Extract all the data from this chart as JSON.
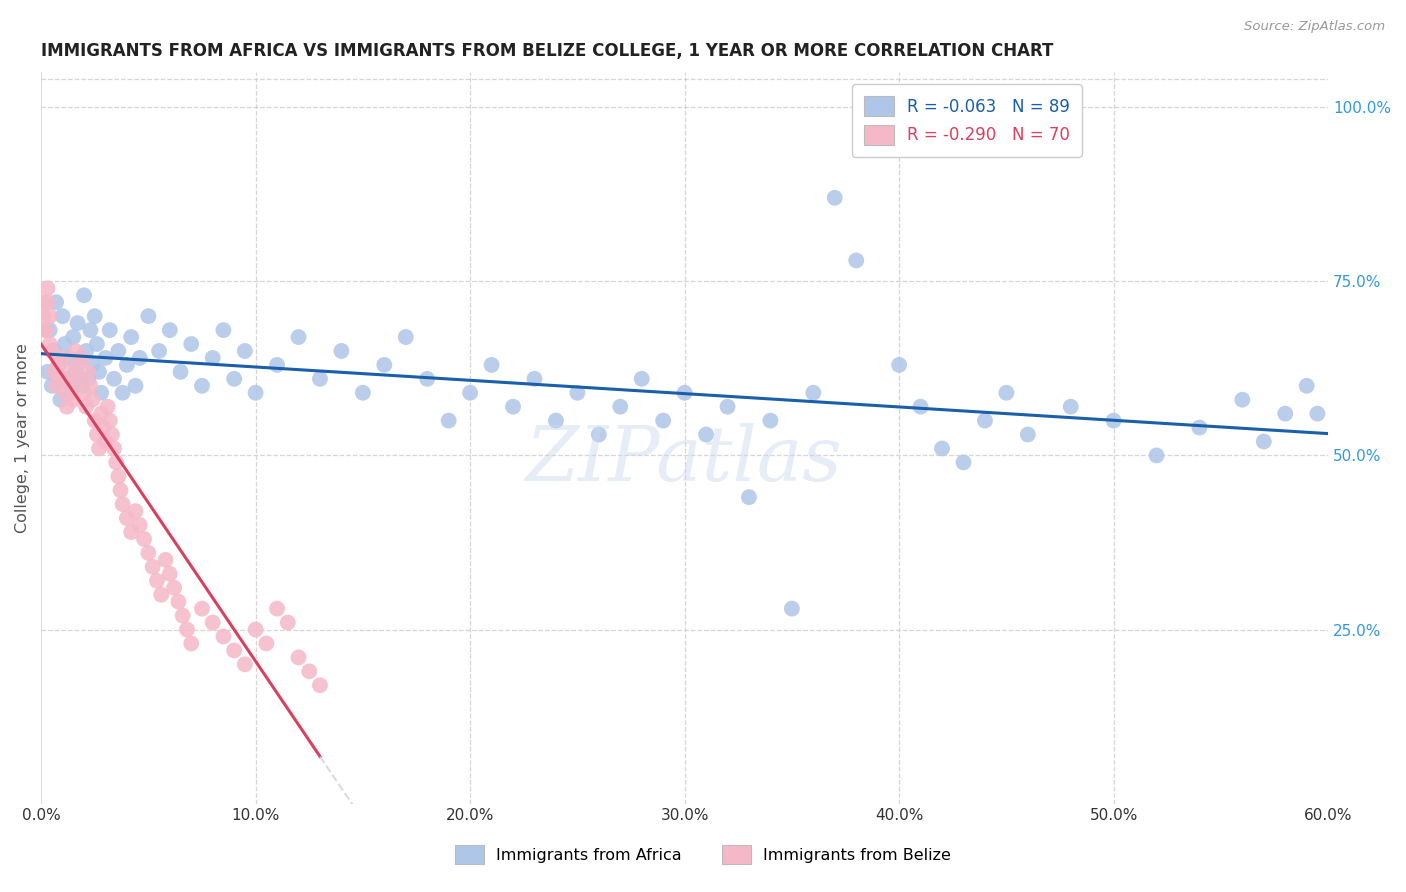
{
  "title": "IMMIGRANTS FROM AFRICA VS IMMIGRANTS FROM BELIZE COLLEGE, 1 YEAR OR MORE CORRELATION CHART",
  "source": "Source: ZipAtlas.com",
  "ylabel": "College, 1 year or more",
  "right_yticks": [
    "100.0%",
    "75.0%",
    "50.0%",
    "25.0%"
  ],
  "right_ytick_vals": [
    1.0,
    0.75,
    0.5,
    0.25
  ],
  "xlim": [
    0.0,
    0.6
  ],
  "ylim": [
    0.0,
    1.05
  ],
  "watermark": "ZIPatlas",
  "blue_color": "#aec6e8",
  "pink_color": "#f5b8c8",
  "blue_line_color": "#1a5faa",
  "pink_line_color": "#d94060",
  "pink_dash_color": "#cccccc",
  "grid_color": "#cccccc",
  "background_color": "#ffffff",
  "africa_x": [
    0.003,
    0.004,
    0.005,
    0.006,
    0.007,
    0.008,
    0.009,
    0.01,
    0.011,
    0.012,
    0.013,
    0.014,
    0.015,
    0.016,
    0.017,
    0.018,
    0.019,
    0.02,
    0.021,
    0.022,
    0.023,
    0.024,
    0.025,
    0.026,
    0.027,
    0.028,
    0.03,
    0.032,
    0.034,
    0.036,
    0.038,
    0.04,
    0.042,
    0.044,
    0.046,
    0.05,
    0.055,
    0.06,
    0.065,
    0.07,
    0.075,
    0.08,
    0.085,
    0.09,
    0.095,
    0.1,
    0.11,
    0.12,
    0.13,
    0.14,
    0.15,
    0.16,
    0.17,
    0.18,
    0.19,
    0.2,
    0.21,
    0.22,
    0.23,
    0.24,
    0.25,
    0.26,
    0.27,
    0.28,
    0.29,
    0.3,
    0.31,
    0.32,
    0.34,
    0.36,
    0.37,
    0.38,
    0.4,
    0.41,
    0.42,
    0.44,
    0.45,
    0.46,
    0.48,
    0.5,
    0.52,
    0.54,
    0.56,
    0.57,
    0.58,
    0.59,
    0.595,
    0.33,
    0.35,
    0.43
  ],
  "africa_y": [
    0.62,
    0.68,
    0.6,
    0.65,
    0.72,
    0.63,
    0.58,
    0.7,
    0.66,
    0.61,
    0.64,
    0.59,
    0.67,
    0.62,
    0.69,
    0.64,
    0.6,
    0.73,
    0.65,
    0.61,
    0.68,
    0.63,
    0.7,
    0.66,
    0.62,
    0.59,
    0.64,
    0.68,
    0.61,
    0.65,
    0.59,
    0.63,
    0.67,
    0.6,
    0.64,
    0.7,
    0.65,
    0.68,
    0.62,
    0.66,
    0.6,
    0.64,
    0.68,
    0.61,
    0.65,
    0.59,
    0.63,
    0.67,
    0.61,
    0.65,
    0.59,
    0.63,
    0.67,
    0.61,
    0.55,
    0.59,
    0.63,
    0.57,
    0.61,
    0.55,
    0.59,
    0.53,
    0.57,
    0.61,
    0.55,
    0.59,
    0.53,
    0.57,
    0.55,
    0.59,
    0.87,
    0.78,
    0.63,
    0.57,
    0.51,
    0.55,
    0.59,
    0.53,
    0.57,
    0.55,
    0.5,
    0.54,
    0.58,
    0.52,
    0.56,
    0.6,
    0.56,
    0.44,
    0.28,
    0.49
  ],
  "belize_x": [
    0.002,
    0.003,
    0.004,
    0.005,
    0.006,
    0.007,
    0.008,
    0.009,
    0.01,
    0.011,
    0.012,
    0.013,
    0.014,
    0.015,
    0.016,
    0.017,
    0.018,
    0.019,
    0.02,
    0.021,
    0.022,
    0.023,
    0.024,
    0.025,
    0.026,
    0.027,
    0.028,
    0.029,
    0.03,
    0.031,
    0.032,
    0.033,
    0.034,
    0.035,
    0.036,
    0.037,
    0.038,
    0.04,
    0.042,
    0.044,
    0.046,
    0.048,
    0.05,
    0.052,
    0.054,
    0.056,
    0.058,
    0.06,
    0.062,
    0.064,
    0.066,
    0.068,
    0.07,
    0.075,
    0.08,
    0.085,
    0.09,
    0.095,
    0.1,
    0.105,
    0.11,
    0.115,
    0.12,
    0.125,
    0.13,
    0.001,
    0.001,
    0.002,
    0.003,
    0.004
  ],
  "belize_y": [
    0.68,
    0.72,
    0.7,
    0.65,
    0.62,
    0.6,
    0.63,
    0.61,
    0.64,
    0.59,
    0.57,
    0.62,
    0.6,
    0.58,
    0.65,
    0.63,
    0.61,
    0.64,
    0.59,
    0.57,
    0.62,
    0.6,
    0.58,
    0.55,
    0.53,
    0.51,
    0.56,
    0.54,
    0.52,
    0.57,
    0.55,
    0.53,
    0.51,
    0.49,
    0.47,
    0.45,
    0.43,
    0.41,
    0.39,
    0.42,
    0.4,
    0.38,
    0.36,
    0.34,
    0.32,
    0.3,
    0.35,
    0.33,
    0.31,
    0.29,
    0.27,
    0.25,
    0.23,
    0.28,
    0.26,
    0.24,
    0.22,
    0.2,
    0.25,
    0.23,
    0.28,
    0.26,
    0.21,
    0.19,
    0.17,
    0.7,
    0.72,
    0.68,
    0.74,
    0.66
  ]
}
